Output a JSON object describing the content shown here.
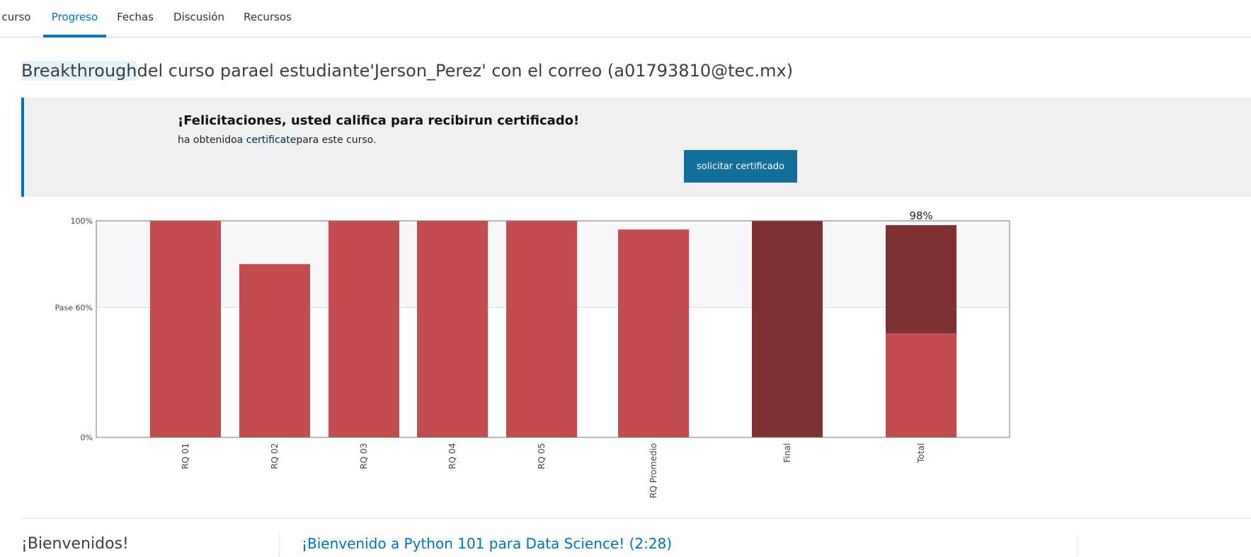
{
  "tabs": [
    {
      "label": "curso",
      "active": false
    },
    {
      "label": "Progreso",
      "active": true
    },
    {
      "label": "Fechas",
      "active": false
    },
    {
      "label": "Discusión",
      "active": false
    },
    {
      "label": "Recursos",
      "active": false
    }
  ],
  "heading": {
    "highlighted": "Breakthrough",
    "rest": "del curso parael estudiante'Jerson_Perez' con el correo (a01793810@tec.mx)"
  },
  "certificate": {
    "title": "¡Felicitaciones, usted califica para recibirun certificado!",
    "text_before": "ha obtenido",
    "text_highlight": "a certificate",
    "text_after": "para este curso.",
    "button_label": "solicitar certificado",
    "accent_color": "#0075b4",
    "button_color": "#126f9a"
  },
  "chart_data": {
    "type": "bar",
    "categories": [
      "RQ 01",
      "RQ 02",
      "RQ 03",
      "RQ 04",
      "RQ 05",
      "RQ Promedio",
      "Final",
      "Total"
    ],
    "values": [
      100,
      80,
      100,
      100,
      100,
      96,
      100,
      98
    ],
    "total_breakdown": [
      {
        "name": "RQ",
        "value": 48,
        "color": "#c44b4e"
      },
      {
        "name": "Final",
        "value": 50,
        "color": "#7f3033"
      }
    ],
    "y_ticks": [
      {
        "value": 0,
        "label": "0%"
      },
      {
        "value": 60,
        "label": "Pase 60%"
      },
      {
        "value": 100,
        "label": "100%"
      }
    ],
    "ylim": [
      0,
      100
    ],
    "pass_threshold": 60,
    "top_label": "98%",
    "colors": {
      "assignment": "#c44b4e",
      "final": "#7f3033",
      "above_pass_band": "#f7f7f9"
    }
  },
  "welcome": {
    "title": "¡Bienvenidos!",
    "section_link": "¡Bienvenido a Python 101 para Data Science! (2:28)"
  }
}
